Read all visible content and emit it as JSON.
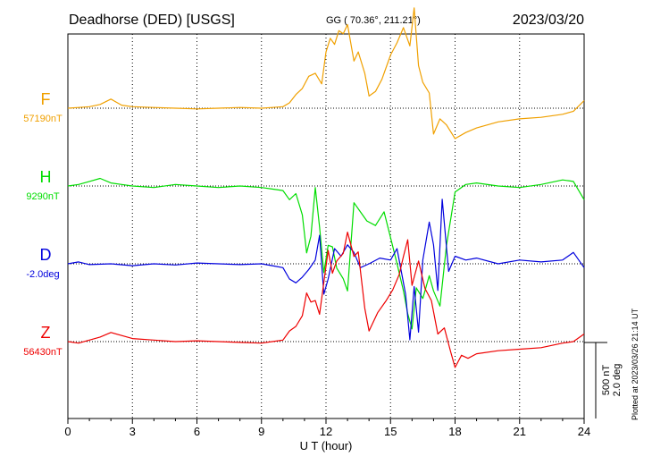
{
  "header": {
    "station": "Deadhorse (DED)  [USGS]",
    "coords": "GG ( 70.36°, 211.21°)",
    "date": "2023/03/20"
  },
  "footer": {
    "plotted_note": "Plotted at 2023/03/26 21:14 UT"
  },
  "scale_bar": {
    "nt_label": "500 nT",
    "deg_label": "2.0 deg"
  },
  "chart_data": {
    "type": "line",
    "title": "Deadhorse (DED)  [USGS]",
    "xlabel": "U T (hour)",
    "ylabel": "",
    "xlim": [
      0,
      24
    ],
    "x_ticks": [
      "0",
      "3",
      "6",
      "9",
      "12",
      "15",
      "18",
      "21",
      "24"
    ],
    "grid": true,
    "grid_style": "dotted",
    "scale_nT_per_bar": 500,
    "scale_deg_per_bar": 2.0,
    "series": [
      {
        "name": "F",
        "baseline_label": "57190nT",
        "baseline": 57190,
        "unit": "nT",
        "color": "#f0a000",
        "x": [
          0,
          0.5,
          1,
          1.5,
          2,
          2.5,
          3,
          4,
          5,
          6,
          7,
          8,
          9,
          9.5,
          10,
          10.3,
          10.6,
          10.9,
          11.2,
          11.5,
          11.8,
          12,
          12.2,
          12.4,
          12.6,
          12.8,
          13.0,
          13.3,
          13.5,
          13.8,
          14.0,
          14.3,
          14.6,
          15.0,
          15.3,
          15.6,
          15.9,
          16.1,
          16.3,
          16.5,
          16.8,
          17.0,
          17.3,
          17.6,
          18.0,
          18.5,
          19,
          20,
          21,
          22,
          23,
          23.5,
          24
        ],
        "y": [
          57190,
          57195,
          57200,
          57215,
          57250,
          57210,
          57200,
          57195,
          57190,
          57185,
          57190,
          57195,
          57190,
          57195,
          57200,
          57225,
          57280,
          57320,
          57400,
          57420,
          57350,
          57560,
          57650,
          57610,
          57700,
          57680,
          57740,
          57500,
          57560,
          57420,
          57270,
          57300,
          57380,
          57540,
          57620,
          57720,
          57600,
          57850,
          57470,
          57360,
          57290,
          57020,
          57120,
          57080,
          56990,
          57030,
          57060,
          57100,
          57120,
          57130,
          57150,
          57170,
          57240
        ]
      },
      {
        "name": "H",
        "baseline_label": "9290nT",
        "baseline": 9290,
        "unit": "nT",
        "color": "#00dd00",
        "x": [
          0,
          0.5,
          1,
          1.5,
          2,
          2.5,
          3,
          4,
          5,
          6,
          7,
          8,
          9,
          9.5,
          10,
          10.3,
          10.6,
          10.9,
          11.1,
          11.3,
          11.5,
          11.7,
          11.9,
          12.1,
          12.3,
          12.5,
          12.8,
          13.0,
          13.3,
          13.6,
          13.9,
          14.3,
          14.7,
          15.0,
          15.3,
          15.6,
          15.8,
          16.0,
          16.2,
          16.5,
          16.8,
          17.0,
          17.3,
          17.6,
          18.0,
          18.5,
          19,
          20,
          21,
          22,
          23,
          23.5,
          24
        ],
        "y": [
          9290,
          9300,
          9320,
          9340,
          9310,
          9300,
          9290,
          9280,
          9300,
          9290,
          9280,
          9290,
          9280,
          9270,
          9260,
          9200,
          9240,
          9100,
          8850,
          8960,
          9280,
          9020,
          8720,
          8900,
          8890,
          8750,
          8680,
          8600,
          9180,
          9120,
          9060,
          9030,
          9120,
          8950,
          8780,
          8600,
          8450,
          8350,
          8620,
          8550,
          8700,
          8600,
          8500,
          8900,
          9250,
          9300,
          9310,
          9290,
          9280,
          9300,
          9330,
          9320,
          9200
        ]
      },
      {
        "name": "D",
        "baseline_label": "-2.0deg",
        "baseline": -2.0,
        "unit": "deg",
        "color": "#0000dd",
        "x": [
          0,
          0.5,
          1,
          2,
          3,
          4,
          5,
          6,
          7,
          8,
          9,
          9.5,
          10,
          10.3,
          10.6,
          10.9,
          11.2,
          11.5,
          11.7,
          11.9,
          12.1,
          12.4,
          12.7,
          13.0,
          13.3,
          13.6,
          14.0,
          14.5,
          15.0,
          15.3,
          15.5,
          15.7,
          15.9,
          16.1,
          16.3,
          16.5,
          16.8,
          17.0,
          17.2,
          17.4,
          17.7,
          18.0,
          18.5,
          19,
          20,
          21,
          22,
          23,
          23.5,
          24
        ],
        "y": [
          -2.0,
          -1.95,
          -2.02,
          -2.0,
          -2.05,
          -2.0,
          -2.03,
          -1.98,
          -2.0,
          -2.02,
          -2.0,
          -2.05,
          -2.1,
          -2.4,
          -2.5,
          -2.35,
          -2.15,
          -1.9,
          -1.25,
          -2.8,
          -2.4,
          -1.6,
          -1.8,
          -1.5,
          -1.7,
          -2.1,
          -2.0,
          -1.85,
          -1.9,
          -1.6,
          -2.2,
          -2.8,
          -4.0,
          -2.6,
          -3.8,
          -1.9,
          -0.9,
          -1.5,
          -2.7,
          -0.3,
          -2.2,
          -1.8,
          -1.9,
          -1.85,
          -2.0,
          -1.9,
          -1.95,
          -1.9,
          -1.7,
          -2.1
        ]
      },
      {
        "name": "Z",
        "baseline_label": "56430nT",
        "baseline": 56430,
        "unit": "nT",
        "color": "#ee0000",
        "x": [
          0,
          0.5,
          1,
          1.5,
          2,
          2.5,
          3,
          4,
          5,
          6,
          7,
          8,
          9,
          9.5,
          10,
          10.3,
          10.6,
          10.9,
          11.1,
          11.3,
          11.5,
          11.7,
          11.9,
          12.1,
          12.3,
          12.5,
          12.8,
          13.0,
          13.3,
          13.5,
          13.8,
          14.0,
          14.4,
          14.8,
          15.1,
          15.4,
          15.6,
          15.8,
          16.0,
          16.3,
          16.6,
          16.9,
          17.2,
          17.5,
          17.8,
          18.0,
          18.3,
          18.6,
          19,
          20,
          21,
          22,
          23,
          23.5,
          24
        ],
        "y": [
          56430,
          56420,
          56440,
          56460,
          56490,
          56470,
          56450,
          56440,
          56430,
          56435,
          56430,
          56425,
          56420,
          56430,
          56440,
          56500,
          56530,
          56600,
          56750,
          56690,
          56700,
          56610,
          56820,
          57030,
          56880,
          56960,
          57010,
          57150,
          56990,
          57020,
          56650,
          56500,
          56620,
          56700,
          56770,
          56870,
          56990,
          57100,
          56800,
          56960,
          56780,
          56700,
          56480,
          56520,
          56360,
          56260,
          56340,
          56320,
          56350,
          56370,
          56380,
          56390,
          56420,
          56430,
          56480
        ]
      }
    ]
  }
}
